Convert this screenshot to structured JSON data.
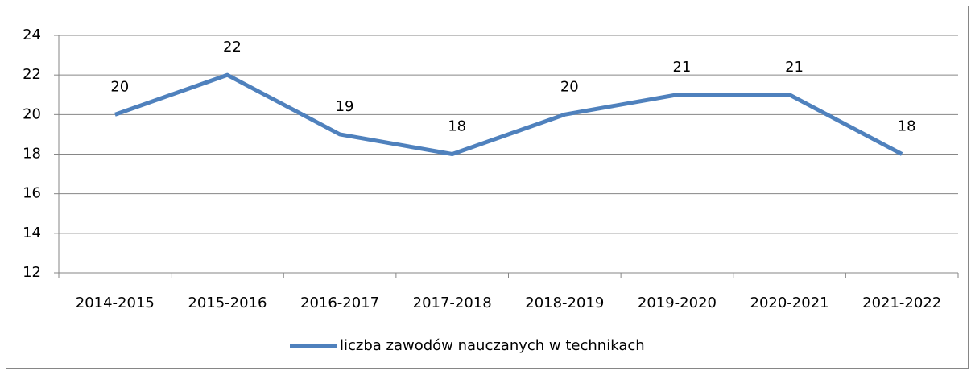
{
  "chart_data": {
    "type": "line",
    "categories": [
      "2014-2015",
      "2015-2016",
      "2016-2017",
      "2017-2018",
      "2018-2019",
      "2019-2020",
      "2020-2021",
      "2021-2022"
    ],
    "series": [
      {
        "name": "liczba zawodów nauczanych w technikach",
        "color": "#4f81bd",
        "values": [
          20,
          22,
          19,
          18,
          20,
          21,
          21,
          18
        ]
      }
    ],
    "ylim": [
      12,
      24
    ],
    "yticks": [
      12,
      14,
      16,
      18,
      20,
      22,
      24
    ],
    "grid": true,
    "legend": "bottom"
  }
}
